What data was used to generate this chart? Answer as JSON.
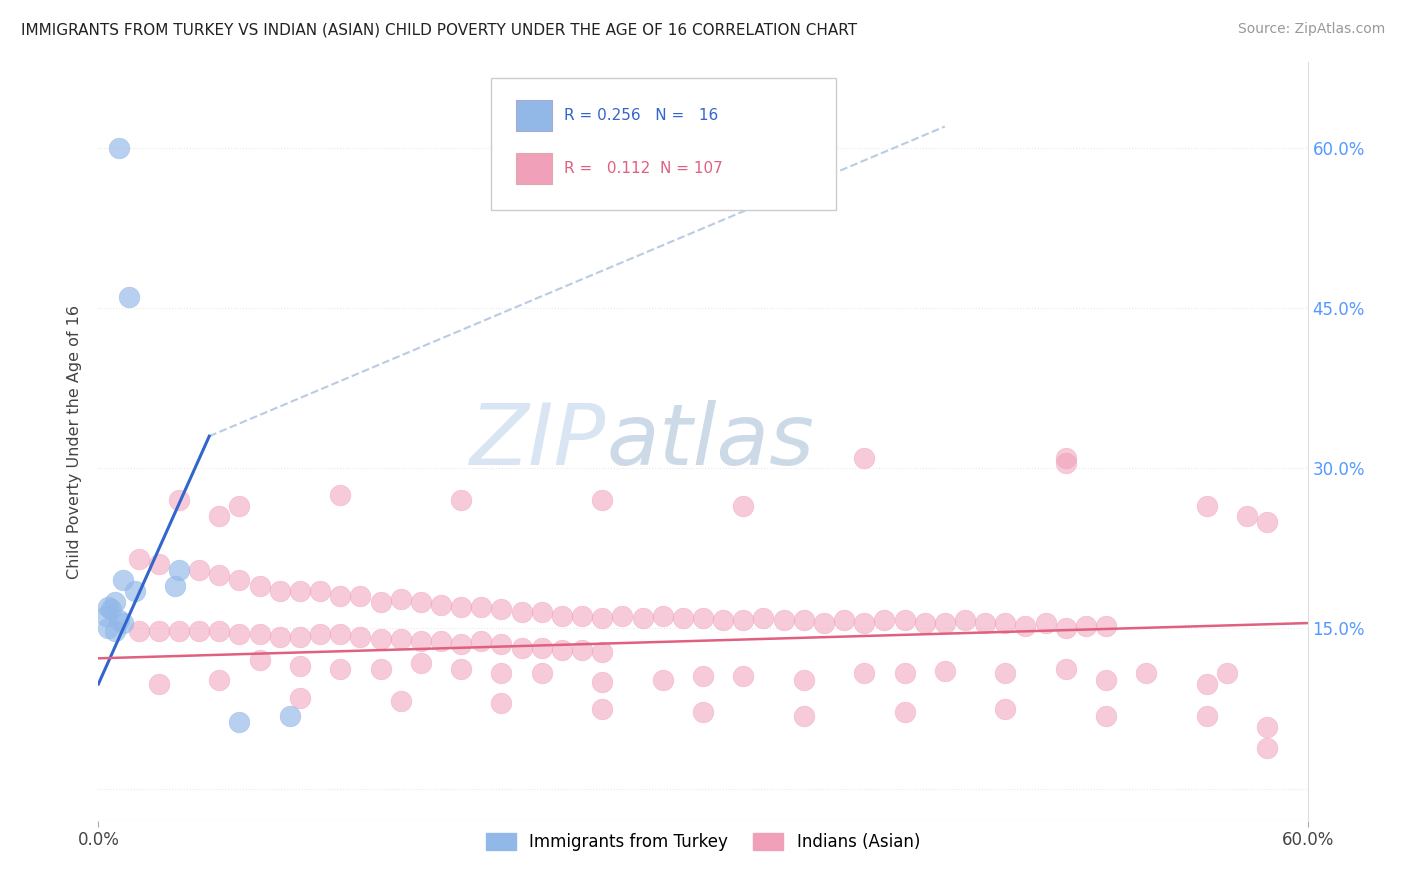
{
  "title": "IMMIGRANTS FROM TURKEY VS INDIAN (ASIAN) CHILD POVERTY UNDER THE AGE OF 16 CORRELATION CHART",
  "source": "Source: ZipAtlas.com",
  "ylabel": "Child Poverty Under the Age of 16",
  "xlabel": "",
  "legend_label_blue": "Immigrants from Turkey",
  "legend_label_pink": "Indians (Asian)",
  "blue_color": "#92b8e8",
  "pink_color": "#f0a0b8",
  "trendline_blue_color": "#3366cc",
  "trendline_pink_color": "#e06080",
  "dashed_line_color": "#b8cce4",
  "xlim": [
    0.0,
    0.6
  ],
  "ylim": [
    -0.03,
    0.68
  ],
  "background_color": "#ffffff",
  "grid_color": "#e8e8e8",
  "blue_points": [
    [
      0.01,
      0.6
    ],
    [
      0.015,
      0.46
    ],
    [
      0.04,
      0.205
    ],
    [
      0.038,
      0.19
    ],
    [
      0.005,
      0.17
    ],
    [
      0.012,
      0.195
    ],
    [
      0.018,
      0.185
    ],
    [
      0.008,
      0.175
    ],
    [
      0.006,
      0.168
    ],
    [
      0.004,
      0.162
    ],
    [
      0.01,
      0.158
    ],
    [
      0.012,
      0.155
    ],
    [
      0.005,
      0.15
    ],
    [
      0.008,
      0.148
    ],
    [
      0.095,
      0.068
    ],
    [
      0.07,
      0.062
    ]
  ],
  "pink_points": [
    [
      0.04,
      0.27
    ],
    [
      0.07,
      0.265
    ],
    [
      0.06,
      0.255
    ],
    [
      0.12,
      0.275
    ],
    [
      0.18,
      0.27
    ],
    [
      0.25,
      0.27
    ],
    [
      0.32,
      0.265
    ],
    [
      0.38,
      0.31
    ],
    [
      0.48,
      0.31
    ],
    [
      0.55,
      0.265
    ],
    [
      0.57,
      0.255
    ],
    [
      0.58,
      0.25
    ],
    [
      0.48,
      0.305
    ],
    [
      0.02,
      0.215
    ],
    [
      0.03,
      0.21
    ],
    [
      0.05,
      0.205
    ],
    [
      0.06,
      0.2
    ],
    [
      0.07,
      0.195
    ],
    [
      0.08,
      0.19
    ],
    [
      0.09,
      0.185
    ],
    [
      0.1,
      0.185
    ],
    [
      0.11,
      0.185
    ],
    [
      0.12,
      0.18
    ],
    [
      0.13,
      0.18
    ],
    [
      0.14,
      0.175
    ],
    [
      0.15,
      0.178
    ],
    [
      0.16,
      0.175
    ],
    [
      0.17,
      0.172
    ],
    [
      0.18,
      0.17
    ],
    [
      0.19,
      0.17
    ],
    [
      0.2,
      0.168
    ],
    [
      0.21,
      0.165
    ],
    [
      0.22,
      0.165
    ],
    [
      0.23,
      0.162
    ],
    [
      0.24,
      0.162
    ],
    [
      0.25,
      0.16
    ],
    [
      0.26,
      0.162
    ],
    [
      0.27,
      0.16
    ],
    [
      0.28,
      0.162
    ],
    [
      0.29,
      0.16
    ],
    [
      0.3,
      0.16
    ],
    [
      0.31,
      0.158
    ],
    [
      0.32,
      0.158
    ],
    [
      0.33,
      0.16
    ],
    [
      0.34,
      0.158
    ],
    [
      0.35,
      0.158
    ],
    [
      0.36,
      0.155
    ],
    [
      0.37,
      0.158
    ],
    [
      0.38,
      0.155
    ],
    [
      0.39,
      0.158
    ],
    [
      0.4,
      0.158
    ],
    [
      0.41,
      0.155
    ],
    [
      0.42,
      0.155
    ],
    [
      0.43,
      0.158
    ],
    [
      0.44,
      0.155
    ],
    [
      0.45,
      0.155
    ],
    [
      0.46,
      0.152
    ],
    [
      0.47,
      0.155
    ],
    [
      0.48,
      0.15
    ],
    [
      0.49,
      0.152
    ],
    [
      0.5,
      0.152
    ],
    [
      0.02,
      0.148
    ],
    [
      0.03,
      0.148
    ],
    [
      0.04,
      0.148
    ],
    [
      0.05,
      0.148
    ],
    [
      0.06,
      0.148
    ],
    [
      0.07,
      0.145
    ],
    [
      0.08,
      0.145
    ],
    [
      0.09,
      0.142
    ],
    [
      0.1,
      0.142
    ],
    [
      0.11,
      0.145
    ],
    [
      0.12,
      0.145
    ],
    [
      0.13,
      0.142
    ],
    [
      0.14,
      0.14
    ],
    [
      0.15,
      0.14
    ],
    [
      0.16,
      0.138
    ],
    [
      0.17,
      0.138
    ],
    [
      0.18,
      0.135
    ],
    [
      0.19,
      0.138
    ],
    [
      0.2,
      0.135
    ],
    [
      0.21,
      0.132
    ],
    [
      0.22,
      0.132
    ],
    [
      0.23,
      0.13
    ],
    [
      0.24,
      0.13
    ],
    [
      0.25,
      0.128
    ],
    [
      0.08,
      0.12
    ],
    [
      0.1,
      0.115
    ],
    [
      0.12,
      0.112
    ],
    [
      0.14,
      0.112
    ],
    [
      0.16,
      0.118
    ],
    [
      0.18,
      0.112
    ],
    [
      0.2,
      0.108
    ],
    [
      0.22,
      0.108
    ],
    [
      0.3,
      0.105
    ],
    [
      0.35,
      0.102
    ],
    [
      0.4,
      0.108
    ],
    [
      0.45,
      0.108
    ],
    [
      0.5,
      0.102
    ],
    [
      0.55,
      0.098
    ],
    [
      0.58,
      0.058
    ],
    [
      0.25,
      0.1
    ],
    [
      0.28,
      0.102
    ],
    [
      0.32,
      0.105
    ],
    [
      0.38,
      0.108
    ],
    [
      0.42,
      0.11
    ],
    [
      0.48,
      0.112
    ],
    [
      0.52,
      0.108
    ],
    [
      0.56,
      0.108
    ],
    [
      0.03,
      0.098
    ],
    [
      0.06,
      0.102
    ],
    [
      0.1,
      0.085
    ],
    [
      0.15,
      0.082
    ],
    [
      0.2,
      0.08
    ],
    [
      0.25,
      0.075
    ],
    [
      0.3,
      0.072
    ],
    [
      0.35,
      0.068
    ],
    [
      0.4,
      0.072
    ],
    [
      0.45,
      0.075
    ],
    [
      0.5,
      0.068
    ],
    [
      0.55,
      0.068
    ],
    [
      0.58,
      0.038
    ]
  ],
  "blue_trendline": [
    [
      0.0,
      0.098
    ],
    [
      0.055,
      0.33
    ]
  ],
  "blue_trendline_dash": [
    [
      0.055,
      0.33
    ],
    [
      0.42,
      0.62
    ]
  ],
  "pink_trendline": [
    [
      0.0,
      0.122
    ],
    [
      0.6,
      0.155
    ]
  ],
  "watermark_text": "ZIP",
  "watermark_text2": "atlas",
  "watermark_color1": "#d0dff0",
  "watermark_color2": "#c0d0e0"
}
